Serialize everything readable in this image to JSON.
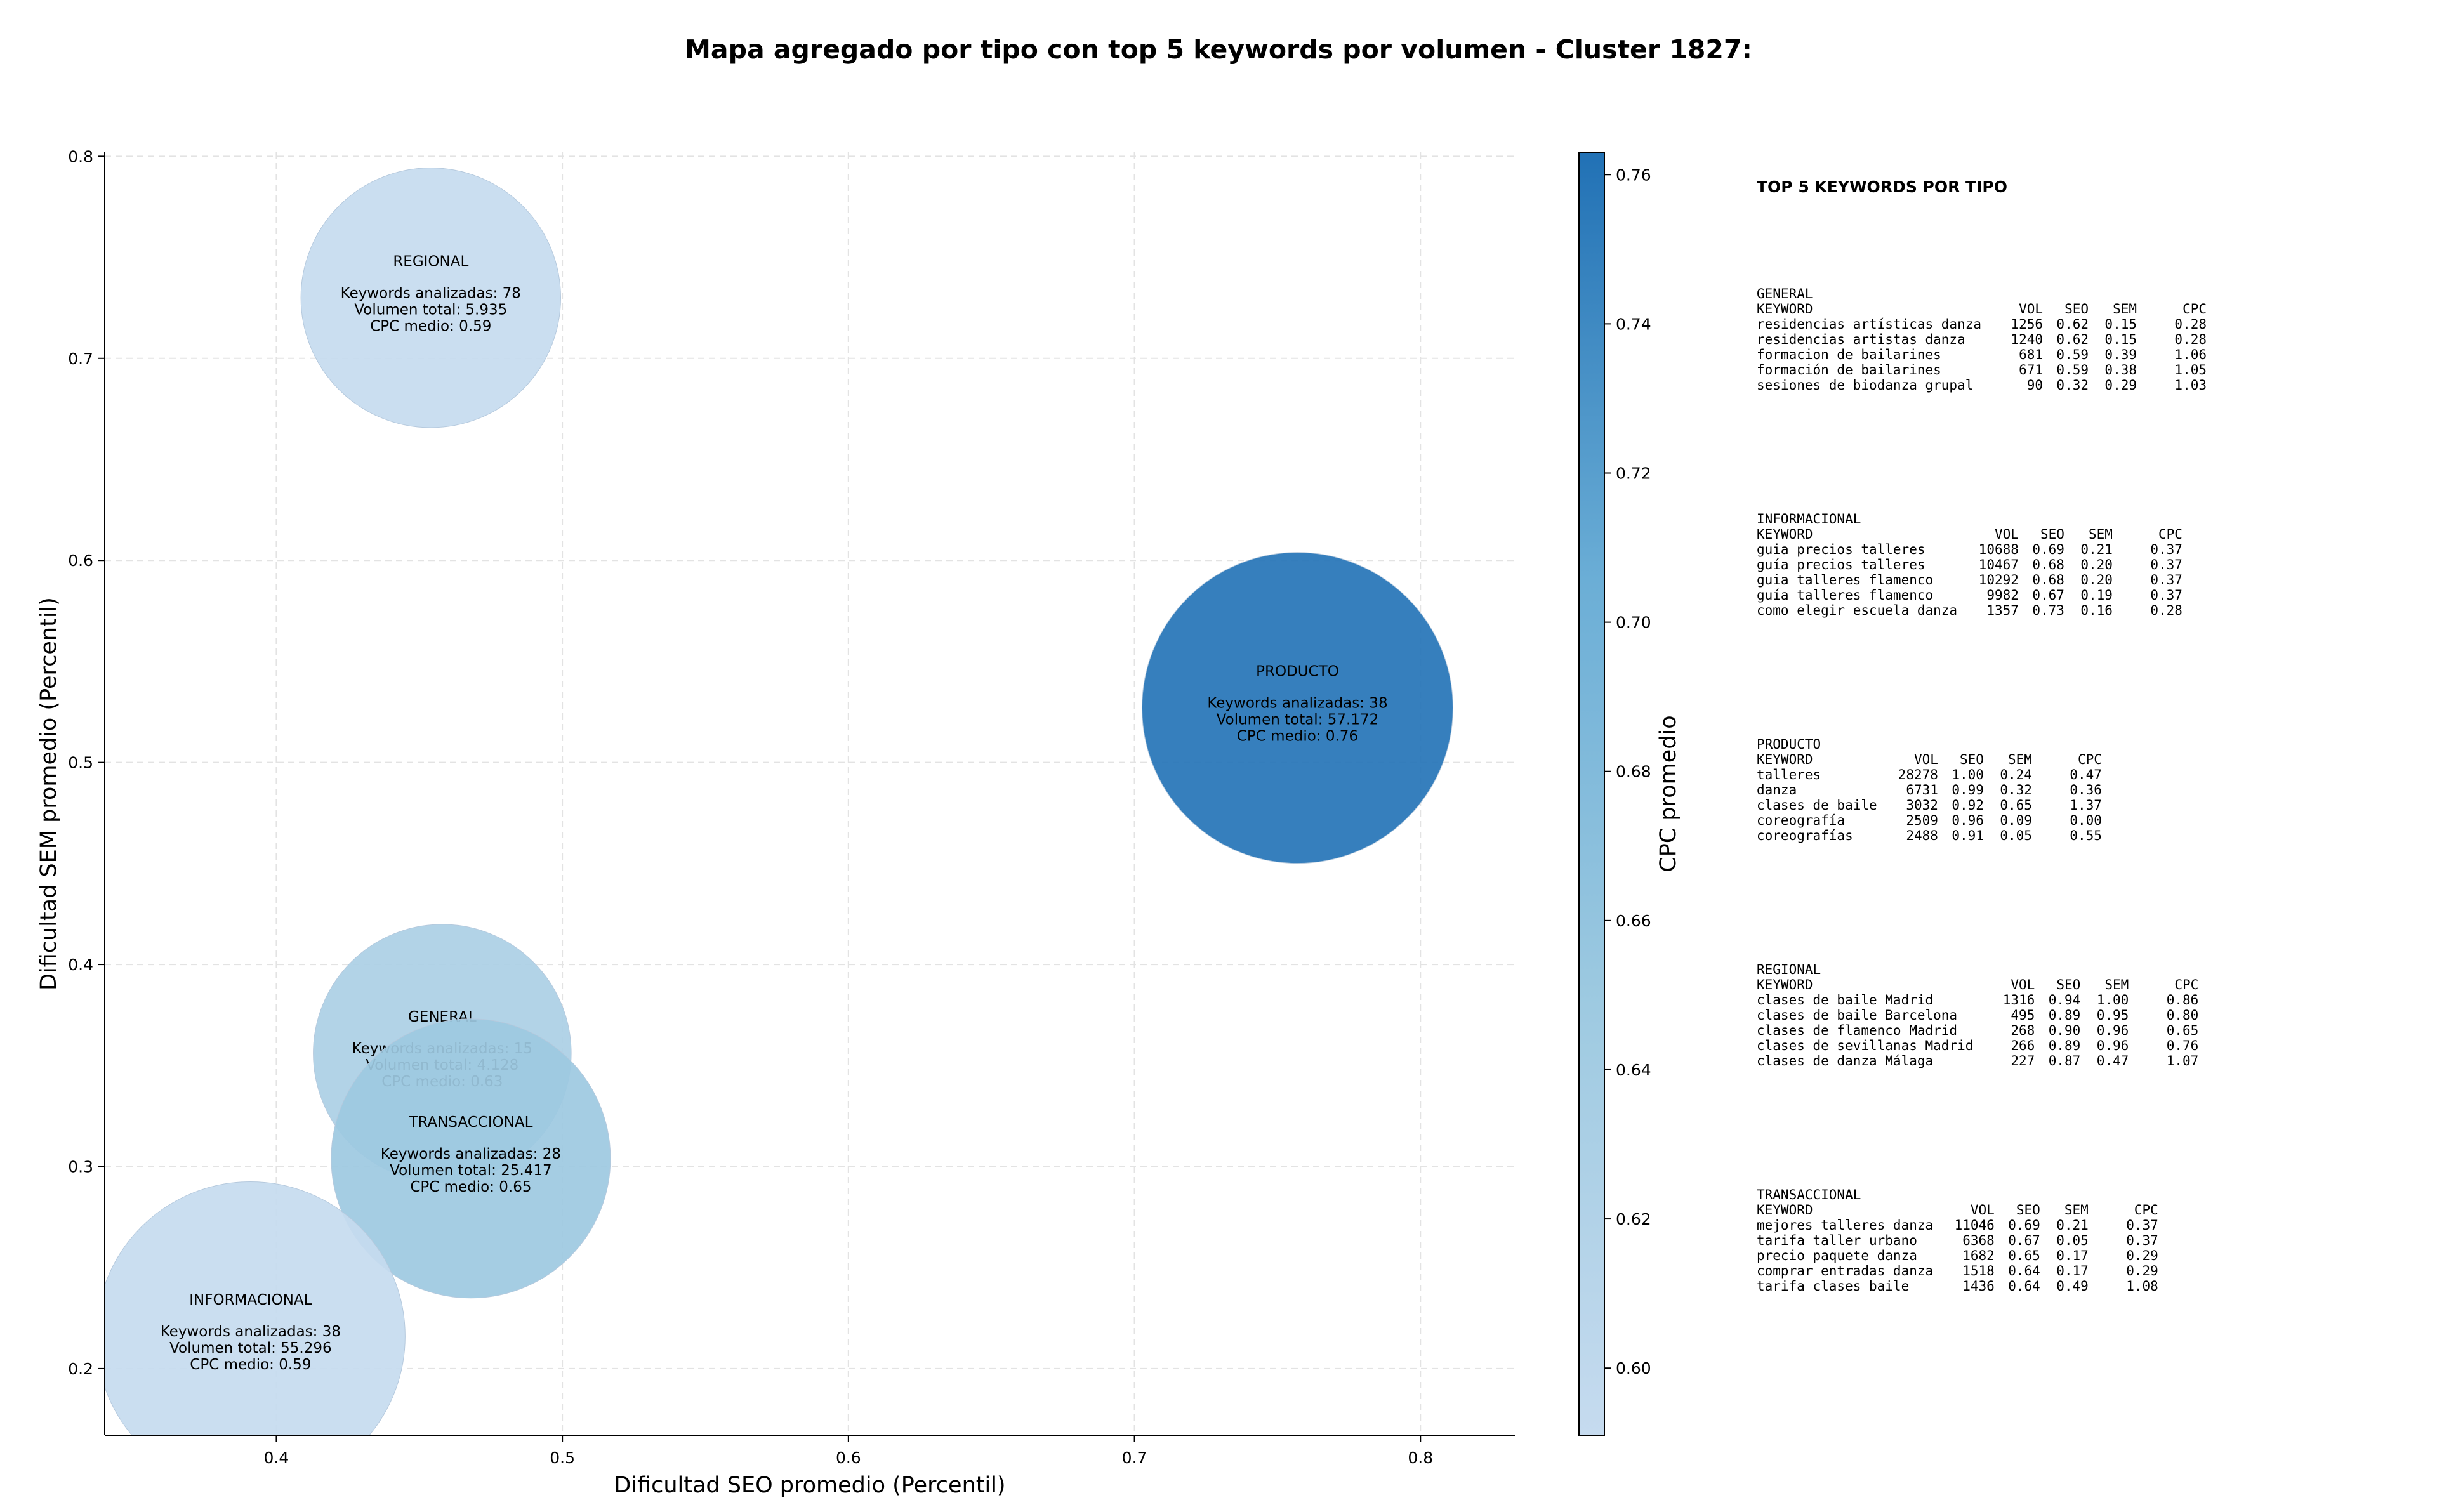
{
  "chart_data": {
    "type": "scatter",
    "title": "Mapa agregado por tipo con top 5 keywords por volumen - Cluster 1827:",
    "xlabel": "Dificultad SEO promedio (Percentil)",
    "ylabel": "Dificultad SEM promedio (Percentil)",
    "xlim": [
      0.34,
      0.833
    ],
    "ylim": [
      0.167,
      0.802
    ],
    "xticks": [
      0.4,
      0.5,
      0.6,
      0.7,
      0.8
    ],
    "yticks": [
      0.2,
      0.3,
      0.4,
      0.5,
      0.6,
      0.7,
      0.8
    ],
    "grid": true,
    "colorbar": {
      "label": "CPC promedio",
      "min": 0.591,
      "max": 0.763,
      "ticks": [
        0.6,
        0.62,
        0.64,
        0.66,
        0.68,
        0.7,
        0.72,
        0.74,
        0.76
      ],
      "colors": [
        "#c6dbef",
        "#9ecae1",
        "#6baed6",
        "#2171b5"
      ]
    },
    "points": [
      {
        "label": "REGIONAL",
        "x": 0.454,
        "y": 0.73,
        "keywords": "Keywords analizadas: 78",
        "volume_text": "Volumen total: 5.935",
        "cpc_text": "CPC medio: 0.59",
        "cpc": 0.59,
        "volume": 5935
      },
      {
        "label": "PRODUCTO",
        "x": 0.757,
        "y": 0.527,
        "keywords": "Keywords analizadas: 38",
        "volume_text": "Volumen total: 57.172",
        "cpc_text": "CPC medio: 0.76",
        "cpc": 0.76,
        "volume": 57172
      },
      {
        "label": "GENERAL",
        "x": 0.458,
        "y": 0.356,
        "keywords": "Keywords analizadas: 15",
        "volume_text": "Volumen total: 4.128",
        "cpc_text": "CPC medio: 0.63",
        "cpc": 0.63,
        "volume": 4128
      },
      {
        "label": "TRANSACCIONAL",
        "x": 0.468,
        "y": 0.304,
        "keywords": "Keywords analizadas: 28",
        "volume_text": "Volumen total: 25.417",
        "cpc_text": "CPC medio: 0.65",
        "cpc": 0.65,
        "volume": 25417
      },
      {
        "label": "INFORMACIONAL",
        "x": 0.391,
        "y": 0.216,
        "keywords": "Keywords analizadas: 38",
        "volume_text": "Volumen total: 55.296",
        "cpc_text": "CPC medio: 0.59",
        "cpc": 0.59,
        "volume": 55296
      }
    ]
  },
  "top_keywords": {
    "title": "TOP 5 KEYWORDS POR TIPO",
    "header": {
      "keyword": "KEYWORD",
      "vol": "VOL",
      "seo": "SEO",
      "sem": "SEM",
      "cpc": "CPC"
    },
    "groups": [
      {
        "name": "GENERAL",
        "rows": [
          {
            "keyword": "residencias artísticas danza",
            "vol": "1256",
            "seo": "0.62",
            "sem": "0.15",
            "cpc": "0.28"
          },
          {
            "keyword": "residencias artistas danza",
            "vol": "1240",
            "seo": "0.62",
            "sem": "0.15",
            "cpc": "0.28"
          },
          {
            "keyword": "formacion de bailarines",
            "vol": "681",
            "seo": "0.59",
            "sem": "0.39",
            "cpc": "1.06"
          },
          {
            "keyword": "formación de bailarines",
            "vol": "671",
            "seo": "0.59",
            "sem": "0.38",
            "cpc": "1.05"
          },
          {
            "keyword": "sesiones de biodanza grupal",
            "vol": "90",
            "seo": "0.32",
            "sem": "0.29",
            "cpc": "1.03"
          }
        ]
      },
      {
        "name": "INFORMACIONAL",
        "rows": [
          {
            "keyword": "guia precios talleres",
            "vol": "10688",
            "seo": "0.69",
            "sem": "0.21",
            "cpc": "0.37"
          },
          {
            "keyword": "guía precios talleres",
            "vol": "10467",
            "seo": "0.68",
            "sem": "0.20",
            "cpc": "0.37"
          },
          {
            "keyword": "guia talleres flamenco",
            "vol": "10292",
            "seo": "0.68",
            "sem": "0.20",
            "cpc": "0.37"
          },
          {
            "keyword": "guía talleres flamenco",
            "vol": "9982",
            "seo": "0.67",
            "sem": "0.19",
            "cpc": "0.37"
          },
          {
            "keyword": "como elegir escuela danza",
            "vol": "1357",
            "seo": "0.73",
            "sem": "0.16",
            "cpc": "0.28"
          }
        ]
      },
      {
        "name": "PRODUCTO",
        "rows": [
          {
            "keyword": "talleres",
            "vol": "28278",
            "seo": "1.00",
            "sem": "0.24",
            "cpc": "0.47"
          },
          {
            "keyword": "danza",
            "vol": "6731",
            "seo": "0.99",
            "sem": "0.32",
            "cpc": "0.36"
          },
          {
            "keyword": "clases de baile",
            "vol": "3032",
            "seo": "0.92",
            "sem": "0.65",
            "cpc": "1.37"
          },
          {
            "keyword": "coreografía",
            "vol": "2509",
            "seo": "0.96",
            "sem": "0.09",
            "cpc": "0.00"
          },
          {
            "keyword": "coreografías",
            "vol": "2488",
            "seo": "0.91",
            "sem": "0.05",
            "cpc": "0.55"
          }
        ]
      },
      {
        "name": "REGIONAL",
        "rows": [
          {
            "keyword": "clases de baile Madrid",
            "vol": "1316",
            "seo": "0.94",
            "sem": "1.00",
            "cpc": "0.86"
          },
          {
            "keyword": "clases de baile Barcelona",
            "vol": "495",
            "seo": "0.89",
            "sem": "0.95",
            "cpc": "0.80"
          },
          {
            "keyword": "clases de flamenco Madrid",
            "vol": "268",
            "seo": "0.90",
            "sem": "0.96",
            "cpc": "0.65"
          },
          {
            "keyword": "clases de sevillanas Madrid",
            "vol": "266",
            "seo": "0.89",
            "sem": "0.96",
            "cpc": "0.76"
          },
          {
            "keyword": "clases de danza Málaga",
            "vol": "227",
            "seo": "0.87",
            "sem": "0.47",
            "cpc": "1.07"
          }
        ]
      },
      {
        "name": "TRANSACCIONAL",
        "rows": [
          {
            "keyword": "mejores talleres danza",
            "vol": "11046",
            "seo": "0.69",
            "sem": "0.21",
            "cpc": "0.37"
          },
          {
            "keyword": "tarifa taller urbano",
            "vol": "6368",
            "seo": "0.67",
            "sem": "0.05",
            "cpc": "0.37"
          },
          {
            "keyword": "precio paquete danza",
            "vol": "1682",
            "seo": "0.65",
            "sem": "0.17",
            "cpc": "0.29"
          },
          {
            "keyword": "comprar entradas danza",
            "vol": "1518",
            "seo": "0.64",
            "sem": "0.17",
            "cpc": "0.29"
          },
          {
            "keyword": "tarifa clases baile",
            "vol": "1436",
            "seo": "0.64",
            "sem": "0.49",
            "cpc": "1.08"
          }
        ]
      }
    ]
  }
}
